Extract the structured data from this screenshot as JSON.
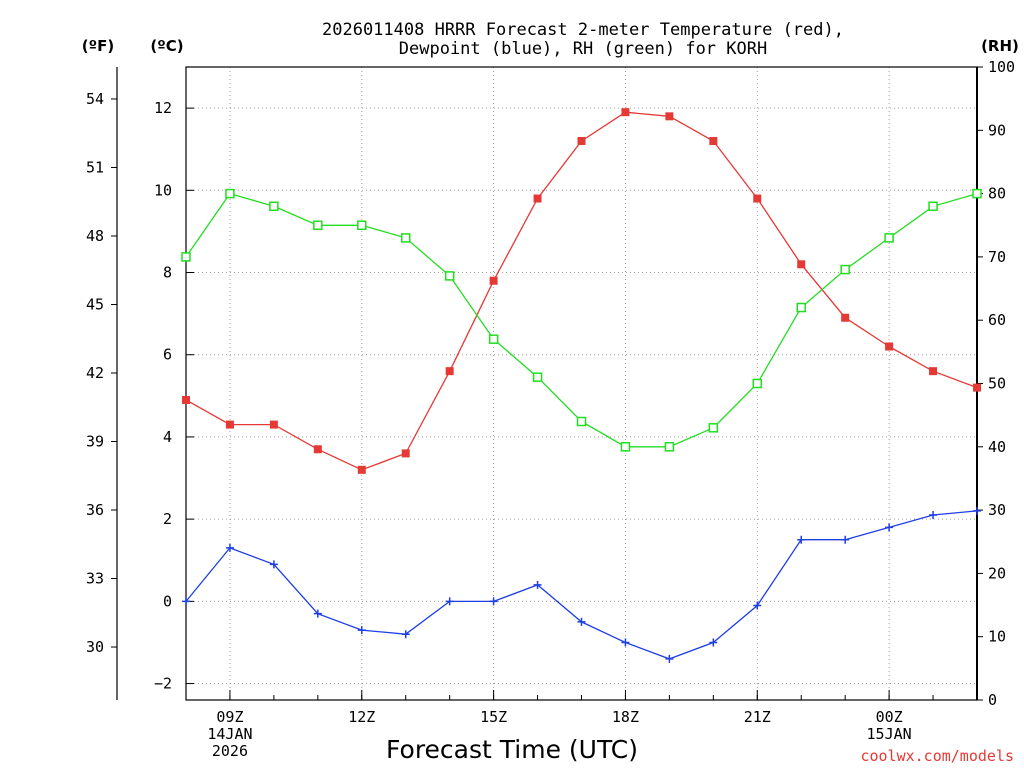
{
  "chart_data": {
    "type": "line",
    "title_lines": [
      "2026011408 HRRR Forecast 2-meter Temperature (red),",
      "Dewpoint (blue), RH (green) for KORH"
    ],
    "units": {
      "fahrenheit": "(ºF)",
      "celsius": "(ºC)",
      "rh": "(RH)"
    },
    "xlabel": "Forecast Time (UTC)",
    "credit": "coolwx.com/models",
    "x_hours": [
      8,
      9,
      10,
      11,
      12,
      13,
      14,
      15,
      16,
      17,
      18,
      19,
      20,
      21,
      22,
      23,
      24,
      25,
      26
    ],
    "xlim": [
      8,
      26
    ],
    "x_ticks": [
      {
        "hour": 9,
        "lines": [
          "09Z",
          "14JAN",
          "2026"
        ]
      },
      {
        "hour": 12,
        "lines": [
          "12Z"
        ]
      },
      {
        "hour": 15,
        "lines": [
          "15Z"
        ]
      },
      {
        "hour": 18,
        "lines": [
          "18Z"
        ]
      },
      {
        "hour": 21,
        "lines": [
          "21Z"
        ]
      },
      {
        "hour": 24,
        "lines": [
          "00Z",
          "15JAN"
        ]
      }
    ],
    "y_left_c": {
      "range": [
        -2.4,
        13.0
      ],
      "ticks": [
        -2,
        0,
        2,
        4,
        6,
        8,
        10,
        12
      ]
    },
    "y_left_f": {
      "ticks": [
        30,
        33,
        36,
        39,
        42,
        45,
        48,
        51,
        54
      ],
      "labels": [
        "30",
        "33",
        "36",
        "39",
        "42",
        "45",
        "48",
        "51",
        "54"
      ]
    },
    "y_right_rh": {
      "range": [
        0,
        100
      ],
      "ticks": [
        0,
        10,
        20,
        30,
        40,
        50,
        60,
        70,
        80,
        90,
        100
      ]
    },
    "series": [
      {
        "name": "2-meter Temperature",
        "axis": "celsius",
        "color": "#e53935",
        "marker": "filled-square",
        "values": [
          4.9,
          4.3,
          4.3,
          3.7,
          3.2,
          3.6,
          5.6,
          7.8,
          9.8,
          11.2,
          11.9,
          11.8,
          11.2,
          9.8,
          8.2,
          6.9,
          6.2,
          5.6,
          5.2
        ]
      },
      {
        "name": "Dewpoint",
        "axis": "celsius",
        "color": "#1e3ee6",
        "marker": "plus",
        "values": [
          0.0,
          1.3,
          0.9,
          -0.3,
          -0.7,
          -0.8,
          0.0,
          0.0,
          0.4,
          -0.5,
          -1.0,
          -1.4,
          -1.0,
          -0.1,
          1.5,
          1.5,
          1.8,
          2.1,
          2.2
        ]
      },
      {
        "name": "Relative Humidity",
        "axis": "rh",
        "color": "#22dd22",
        "marker": "open-square",
        "values": [
          70,
          80,
          78,
          75,
          75,
          73,
          67,
          57,
          51,
          44,
          40,
          40,
          43,
          50,
          62,
          68,
          73,
          78,
          80
        ]
      }
    ]
  }
}
